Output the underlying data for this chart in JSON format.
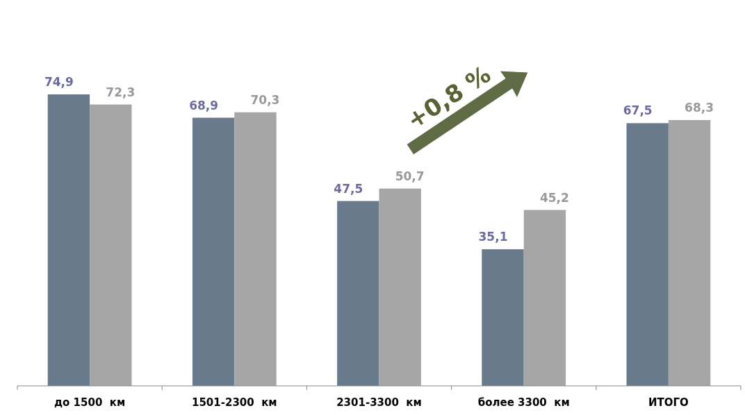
{
  "chart_data": {
    "type": "bar",
    "categories": [
      "до 1500  км",
      "1501-2300  км",
      "2301-3300  км",
      "более 3300  км",
      "ИТОГО"
    ],
    "series": [
      {
        "color": "#687a8c",
        "values": [
          74.9,
          68.9,
          47.5,
          35.1,
          67.5
        ],
        "value_labels": [
          "74,9",
          "68,9",
          "47,5",
          "35,1",
          "67,5"
        ]
      },
      {
        "color": "#a6a6a6",
        "values": [
          72.3,
          70.3,
          50.7,
          45.2,
          68.3
        ],
        "value_labels": [
          "72,3",
          "70,3",
          "50,7",
          "45,2",
          "68,3"
        ]
      }
    ],
    "annotations": [
      "+0,8 %"
    ]
  }
}
